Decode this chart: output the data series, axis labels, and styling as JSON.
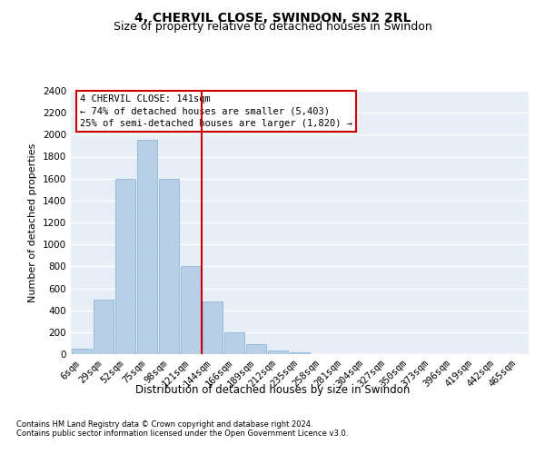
{
  "title1": "4, CHERVIL CLOSE, SWINDON, SN2 2RL",
  "title2": "Size of property relative to detached houses in Swindon",
  "xlabel": "Distribution of detached houses by size in Swindon",
  "ylabel": "Number of detached properties",
  "categories": [
    "6sqm",
    "29sqm",
    "52sqm",
    "75sqm",
    "98sqm",
    "121sqm",
    "144sqm",
    "166sqm",
    "189sqm",
    "212sqm",
    "235sqm",
    "258sqm",
    "281sqm",
    "304sqm",
    "327sqm",
    "350sqm",
    "373sqm",
    "396sqm",
    "419sqm",
    "442sqm",
    "465sqm"
  ],
  "values": [
    50,
    500,
    1600,
    1950,
    1600,
    800,
    480,
    200,
    90,
    30,
    20,
    0,
    0,
    0,
    0,
    0,
    0,
    0,
    0,
    0,
    0
  ],
  "bar_color": "#b8cfe8",
  "bar_edge_color": "#7aafd4",
  "vline_color": "#cc0000",
  "vline_x": 5.5,
  "annotation_text": "4 CHERVIL CLOSE: 141sqm\n← 74% of detached houses are smaller (5,403)\n25% of semi-detached houses are larger (1,820) →",
  "annotation_box_facecolor": "#ffffff",
  "annotation_box_edgecolor": "#cc0000",
  "ylim": [
    0,
    2400
  ],
  "yticks": [
    0,
    200,
    400,
    600,
    800,
    1000,
    1200,
    1400,
    1600,
    1800,
    2000,
    2200,
    2400
  ],
  "footnote1": "Contains HM Land Registry data © Crown copyright and database right 2024.",
  "footnote2": "Contains public sector information licensed under the Open Government Licence v3.0.",
  "background_color": "#e8eef5",
  "grid_color": "#ffffff",
  "title1_fontsize": 10,
  "title2_fontsize": 9,
  "xlabel_fontsize": 8.5,
  "ylabel_fontsize": 8,
  "tick_fontsize": 7.5,
  "footnote_fontsize": 6,
  "annotation_fontsize": 7.5
}
